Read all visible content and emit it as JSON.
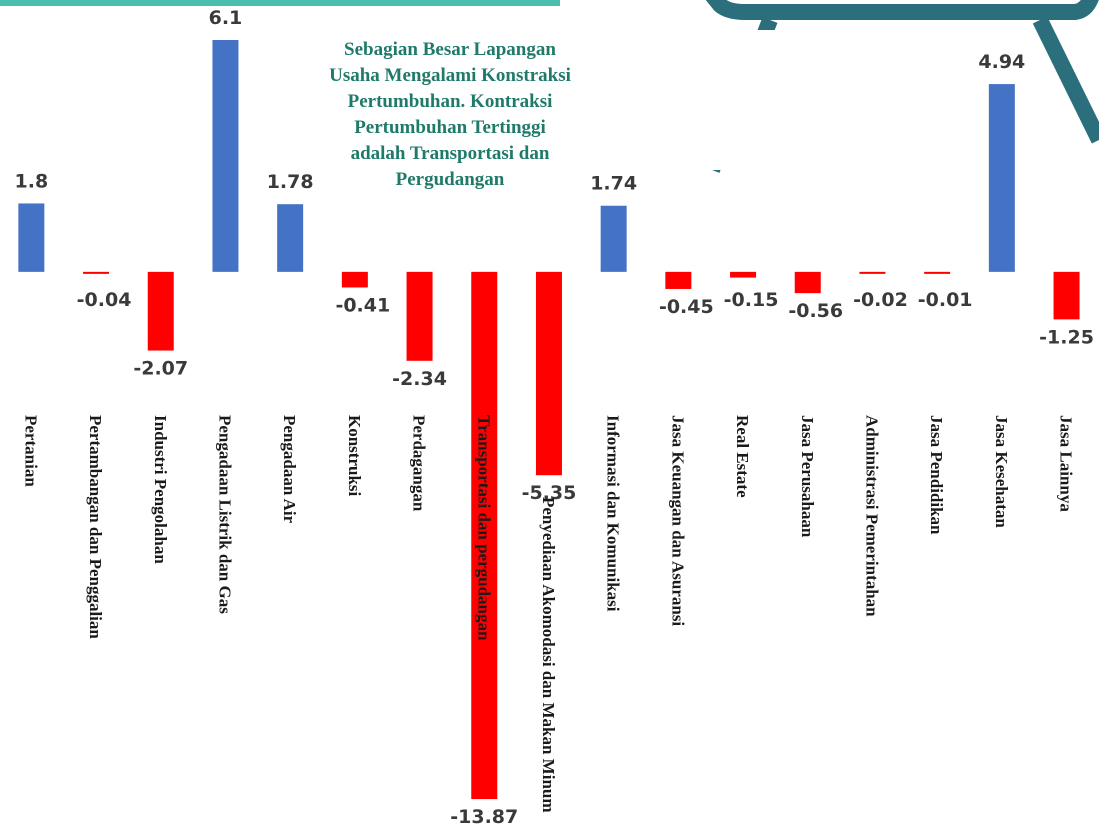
{
  "chart_data": {
    "type": "bar",
    "annotation": [
      "Sebagian Besar Lapangan",
      "Usaha Mengalami Konstraksi",
      "Pertumbuhan. Kontraksi",
      "Pertumbuhan Tertinggi",
      "adalah Transportasi dan",
      "Pergudangan"
    ],
    "categories": [
      "Pertanian",
      "Pertambangan dan Penggalian",
      "Industri Pengolahan",
      "Pengadaan Listrik dan Gas",
      "Pengadaan Air",
      "Konstruksi",
      "Perdagangan",
      "Transportasi dan pergudangan",
      "Penyediaan Akomodasi dan Makan Minum",
      "Informasi dan Komunikasi",
      "Jasa Keuangan dan Asuransi",
      "Real Estate",
      "Jasa Perusahaan",
      "Administrasi Pemerintahan",
      "Jasa Pendidikan",
      "Jasa Kesehatan",
      "Jasa Lainnya"
    ],
    "values": [
      1.8,
      -0.04,
      -2.07,
      6.1,
      1.78,
      -0.41,
      -2.34,
      -13.87,
      -5.35,
      1.74,
      -0.45,
      -0.15,
      -0.56,
      -0.02,
      -0.01,
      4.94,
      -1.25
    ],
    "positive_color": "#4472c4",
    "negative_color": "#ff0000",
    "ylim": [
      -14,
      6.6
    ]
  }
}
